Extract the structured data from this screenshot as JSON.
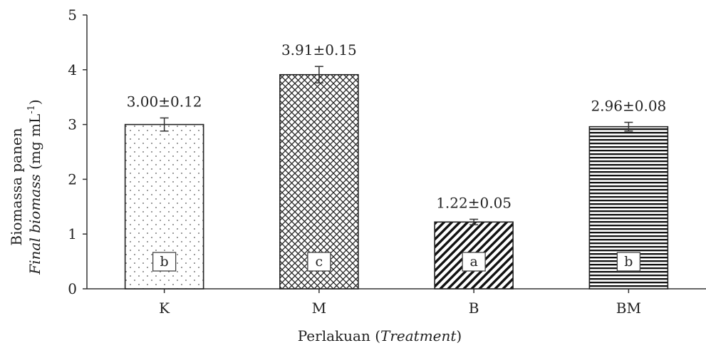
{
  "chart_data": {
    "type": "bar",
    "categories": [
      "K",
      "M",
      "B",
      "BM"
    ],
    "values": [
      3.0,
      3.91,
      1.22,
      2.96
    ],
    "errors": [
      0.12,
      0.15,
      0.05,
      0.08
    ],
    "value_labels": [
      "3.00±0.12",
      "3.91±0.15",
      "1.22±0.05",
      "2.96±0.08"
    ],
    "group_letters": [
      "b",
      "c",
      "a",
      "b"
    ],
    "patterns": [
      "dots",
      "crosshatch",
      "diagonal",
      "horizontal"
    ],
    "ylim": [
      0,
      5
    ],
    "yticks": [
      0,
      1,
      2,
      3,
      4,
      5
    ],
    "ylabel_line1": "Biomassa panen",
    "ylabel_line2_italic": "Final biomass",
    "ylabel_line2_unit": " (mg mL",
    "ylabel_line2_sup": "-1",
    "ylabel_line2_close": ")",
    "xlabel_main": "Perlakuan (",
    "xlabel_italic": "Treatment",
    "xlabel_close": ")",
    "grid": false,
    "legend": "none",
    "title": ""
  }
}
